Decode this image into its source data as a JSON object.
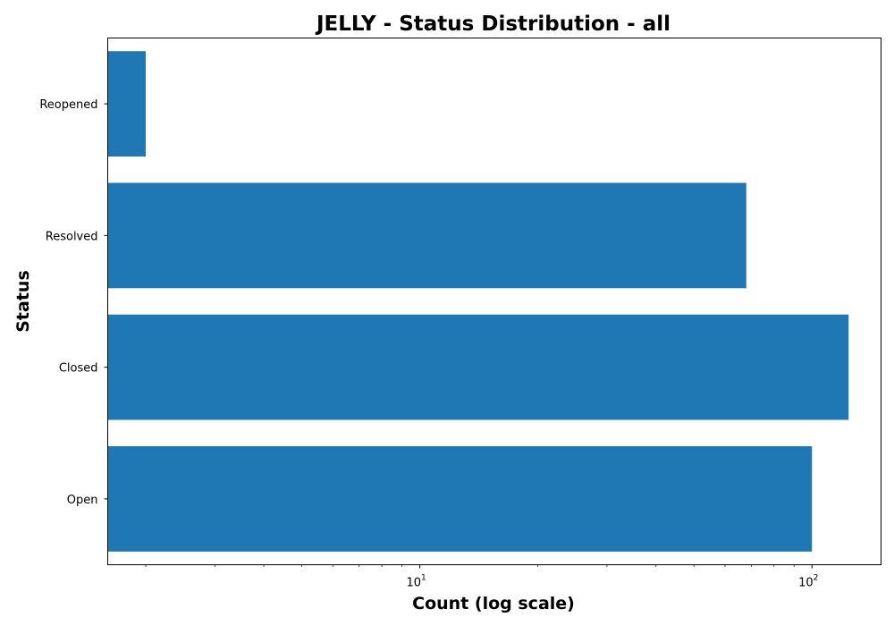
{
  "chart_data": {
    "type": "bar",
    "orientation": "horizontal",
    "title": "JELLY - Status Distribution - all",
    "xlabel": "Count (log scale)",
    "ylabel": "Status",
    "x_scale": "log",
    "xlim": [
      1.6,
      150
    ],
    "xticks": [
      {
        "value": 10,
        "base": "10",
        "exp": "1"
      },
      {
        "value": 100,
        "base": "10",
        "exp": "2"
      }
    ],
    "categories": [
      "Open",
      "Closed",
      "Resolved",
      "Reopened"
    ],
    "values": [
      100,
      124,
      68,
      2
    ],
    "bar_color": "#1f77b4",
    "grid": false,
    "legend": "none"
  }
}
